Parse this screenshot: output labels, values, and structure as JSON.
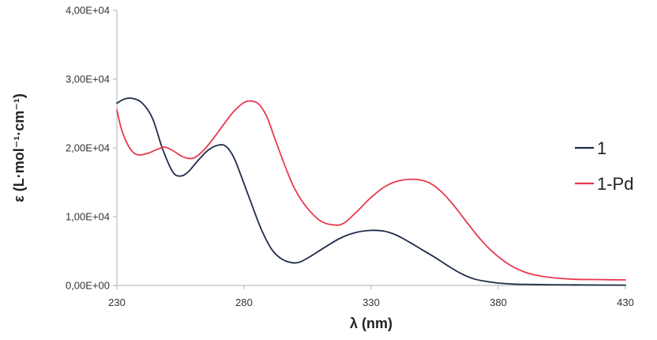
{
  "chart_data": {
    "type": "line",
    "xlabel": "λ (nm)",
    "ylabel": "ε (L·mol⁻¹·cm⁻¹)",
    "xlim": [
      230,
      430
    ],
    "ylim": [
      0,
      40000
    ],
    "x_ticks": [
      230,
      280,
      330,
      380,
      430
    ],
    "x_tick_labels": [
      "230",
      "280",
      "330",
      "380",
      "430"
    ],
    "y_ticks": [
      0,
      10000,
      20000,
      30000,
      40000
    ],
    "y_tick_labels": [
      "0,00E+00",
      "1,00E+04",
      "2,00E+04",
      "3,00E+04",
      "4,00E+04"
    ],
    "grid": false,
    "legend_position": "right",
    "series": [
      {
        "name": "1",
        "color": "#1f2d4a",
        "x": [
          230,
          233,
          236,
          240,
          244,
          248,
          252,
          255,
          258,
          262,
          266,
          270,
          273,
          276,
          279,
          283,
          287,
          291,
          295,
          299,
          302,
          306,
          312,
          318,
          324,
          330,
          335,
          340,
          345,
          350,
          355,
          360,
          365,
          370,
          375,
          380,
          386,
          392,
          400,
          410,
          420,
          430
        ],
        "y": [
          26500,
          27100,
          27200,
          26500,
          24300,
          19800,
          16500,
          15900,
          16500,
          18200,
          19700,
          20400,
          20200,
          18600,
          15800,
          11800,
          8000,
          5200,
          3800,
          3300,
          3400,
          4200,
          5600,
          6900,
          7700,
          8000,
          7900,
          7300,
          6300,
          5200,
          4100,
          2900,
          1800,
          1000,
          600,
          350,
          200,
          150,
          100,
          80,
          60,
          50
        ]
      },
      {
        "name": "1-Pd",
        "color": "#e8384f",
        "x": [
          230,
          232,
          235,
          238,
          242,
          246,
          249,
          252,
          256,
          260,
          264,
          268,
          272,
          276,
          280,
          283,
          286,
          289,
          292,
          296,
          300,
          305,
          310,
          315,
          319,
          324,
          330,
          336,
          342,
          348,
          353,
          358,
          363,
          368,
          373,
          378,
          384,
          390,
          396,
          402,
          410,
          420,
          430
        ],
        "y": [
          25500,
          22500,
          20000,
          19000,
          19200,
          19800,
          20100,
          19600,
          18700,
          18500,
          19600,
          21400,
          23400,
          25300,
          26600,
          26800,
          26300,
          24500,
          21500,
          17500,
          14000,
          11200,
          9400,
          8800,
          9000,
          10600,
          12800,
          14500,
          15300,
          15400,
          14900,
          13500,
          11400,
          9000,
          6700,
          4800,
          3100,
          2000,
          1400,
          1100,
          900,
          850,
          800
        ]
      }
    ]
  }
}
